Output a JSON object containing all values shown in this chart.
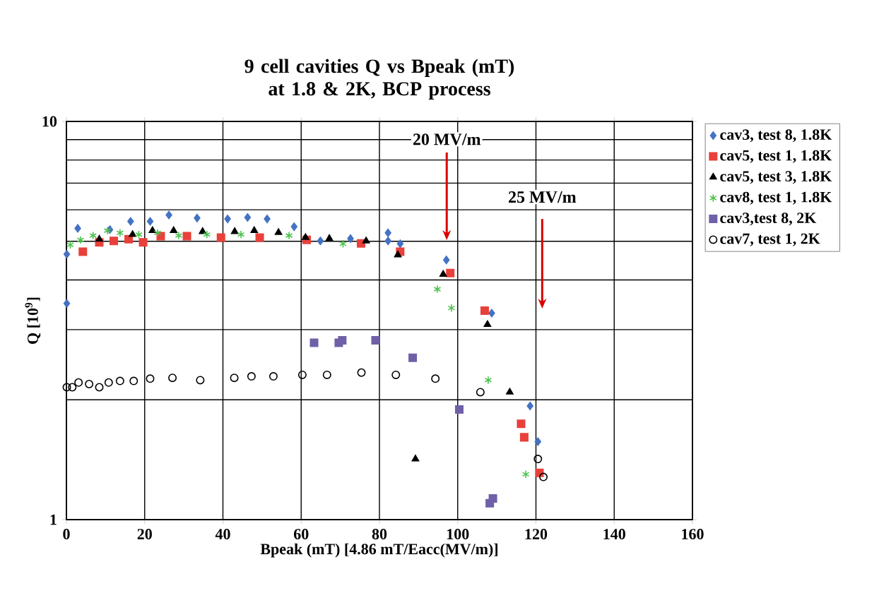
{
  "chart_data": {
    "type": "scatter",
    "title": "9 cell cavities Q vs Bpeak (mT) at 1.8 & 2K, BCP process",
    "xlabel": "Bpeak (mT) [4.86 mT/Eacc(MV/m)]",
    "ylabel": "Q [10$^{9}$]",
    "log": "y",
    "grid": true,
    "legend": "right",
    "xlim": [
      0,
      160
    ],
    "xticks": [
      0,
      20,
      40,
      60,
      80,
      100,
      120,
      140,
      160
    ],
    "ylim": [
      1,
      10
    ],
    "yticks": [
      1,
      10
    ],
    "annotations": [
      "20 MV/m",
      "25 MV/m"
    ],
    "series": [
      {
        "name": "cav3, test 8, 1.8K",
        "color": "#4472c4",
        "marker": "diamond",
        "x": [
          0.1,
          0.1,
          2.9,
          11.1,
          16.4,
          21.4,
          26.2,
          33.4,
          41.2,
          46.3,
          51.3,
          58.2,
          64.9,
          72.6,
          82.2,
          82.2,
          85.3,
          97.1,
          108.7,
          118.5,
          120.5
        ],
        "values": [
          3.49,
          4.64,
          5.39,
          5.35,
          5.61,
          5.61,
          5.82,
          5.72,
          5.69,
          5.74,
          5.69,
          5.44,
          5.01,
          5.08,
          5.25,
          5.01,
          4.93,
          4.49,
          3.3,
          1.93,
          1.57
        ]
      },
      {
        "name": "cav5, test 1, 1.8K",
        "color": "#e8403a",
        "marker": "square",
        "x": [
          4.2,
          8.4,
          12.1,
          15.9,
          19.6,
          24.1,
          30.8,
          39.5,
          49.4,
          61.4,
          75.3,
          85.3,
          98.1,
          106.9,
          116.2,
          117.0,
          120.9
        ],
        "values": [
          4.71,
          4.97,
          5.01,
          5.06,
          4.97,
          5.15,
          5.15,
          5.11,
          5.11,
          5.04,
          4.94,
          4.71,
          4.16,
          3.35,
          1.74,
          1.61,
          1.31
        ]
      },
      {
        "name": "cav5, test 3, 1.8K",
        "color": "#000000",
        "marker": "triangle",
        "x": [
          8.4,
          16.9,
          22.0,
          27.4,
          34.8,
          43.0,
          48.0,
          54.2,
          61.1,
          67.2,
          76.6,
          84.7,
          89.2,
          96.3,
          107.6,
          113.3
        ],
        "values": [
          5.06,
          5.2,
          5.32,
          5.32,
          5.29,
          5.29,
          5.32,
          5.26,
          5.11,
          5.08,
          5.01,
          4.62,
          1.42,
          4.13,
          3.09,
          2.09
        ]
      },
      {
        "name": "cav8, test 1, 1.8K",
        "color": "#4cc24c",
        "marker": "cross",
        "x": [
          1.0,
          3.6,
          6.8,
          10.5,
          13.7,
          18.5,
          23.3,
          28.7,
          35.9,
          44.6,
          56.9,
          70.7,
          94.8,
          98.4,
          107.8,
          117.4
        ],
        "values": [
          4.9,
          5.04,
          5.17,
          5.32,
          5.25,
          5.2,
          5.25,
          5.17,
          5.2,
          5.2,
          5.17,
          4.93,
          3.79,
          3.4,
          2.24,
          1.3
        ]
      },
      {
        "name": "cav3,test 8, 2K",
        "color": "#7060a8",
        "marker": "square",
        "x": [
          63.3,
          69.6,
          70.5,
          79.0,
          88.5,
          100.4,
          108.2,
          109.0
        ],
        "values": [
          2.78,
          2.78,
          2.82,
          2.82,
          2.55,
          1.89,
          1.1,
          1.13
        ]
      },
      {
        "name": "cav7, test 1, 2K",
        "color": "#000000",
        "marker": "circle",
        "x": [
          0.1,
          1.5,
          3.1,
          5.8,
          8.4,
          10.8,
          13.7,
          17.2,
          21.4,
          27.1,
          34.2,
          42.9,
          47.3,
          52.9,
          60.3,
          66.6,
          75.4,
          84.2,
          94.3,
          105.8,
          120.5,
          121.9
        ],
        "values": [
          2.15,
          2.15,
          2.21,
          2.19,
          2.15,
          2.21,
          2.23,
          2.23,
          2.26,
          2.27,
          2.24,
          2.27,
          2.29,
          2.29,
          2.31,
          2.31,
          2.34,
          2.31,
          2.26,
          2.09,
          1.42,
          1.28
        ]
      }
    ]
  }
}
